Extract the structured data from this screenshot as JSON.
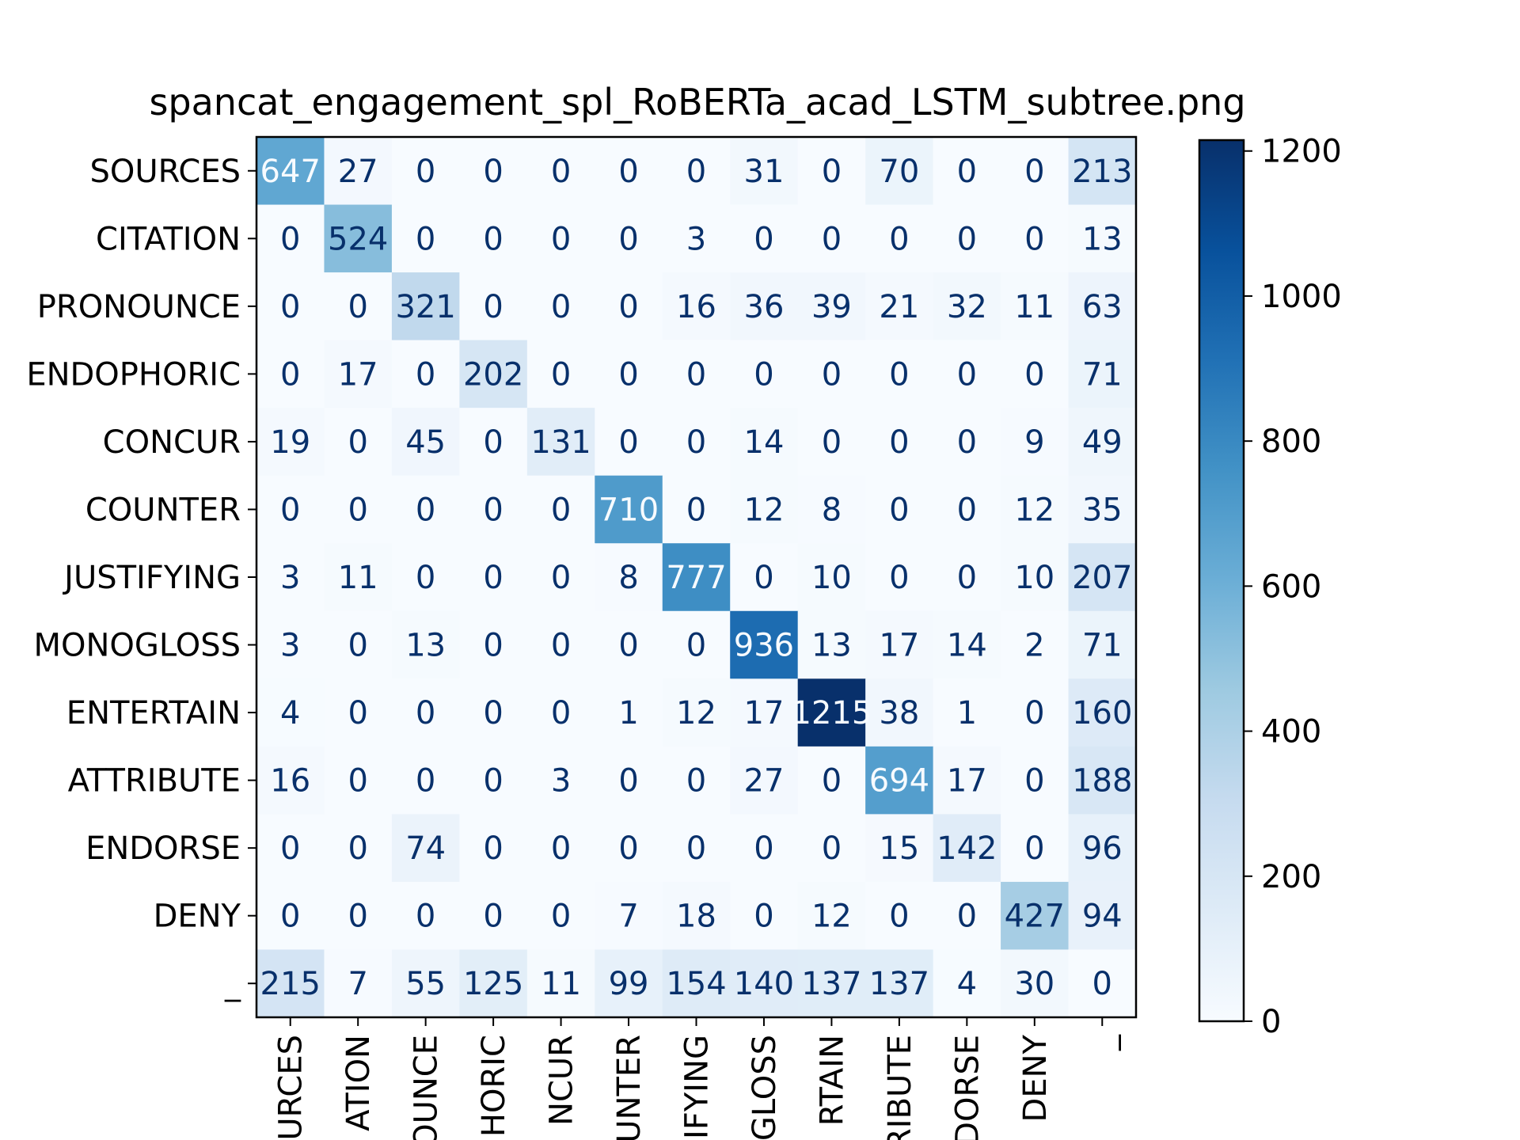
{
  "chart_data": {
    "type": "heatmap",
    "title": "spancat_engagement_spl_RoBERTa_acad_LSTM_subtree.png",
    "xlabel": "",
    "ylabel": "",
    "y_labels": [
      "SOURCES",
      "CITATION",
      "PRONOUNCE",
      "ENDOPHORIC",
      "CONCUR",
      "COUNTER",
      "JUSTIFYING",
      "MONOGLOSS",
      "ENTERTAIN",
      "ATTRIBUTE",
      "ENDORSE",
      "DENY",
      "_"
    ],
    "x_labels": [
      "URCES",
      "ATION",
      "OUNCE",
      "HORIC",
      "NCUR",
      "UNTER",
      "IFYING",
      "GLOSS",
      "RTAIN",
      "RIBUTE",
      "DORSE",
      "DENY",
      "_"
    ],
    "matrix": [
      [
        647,
        27,
        0,
        0,
        0,
        0,
        0,
        31,
        0,
        70,
        0,
        0,
        213
      ],
      [
        0,
        524,
        0,
        0,
        0,
        0,
        3,
        0,
        0,
        0,
        0,
        0,
        13
      ],
      [
        0,
        0,
        321,
        0,
        0,
        0,
        16,
        36,
        39,
        21,
        32,
        11,
        63
      ],
      [
        0,
        17,
        0,
        202,
        0,
        0,
        0,
        0,
        0,
        0,
        0,
        0,
        71
      ],
      [
        19,
        0,
        45,
        0,
        131,
        0,
        0,
        14,
        0,
        0,
        0,
        9,
        49
      ],
      [
        0,
        0,
        0,
        0,
        0,
        710,
        0,
        12,
        8,
        0,
        0,
        12,
        35
      ],
      [
        3,
        11,
        0,
        0,
        0,
        8,
        777,
        0,
        10,
        0,
        0,
        10,
        207
      ],
      [
        3,
        0,
        13,
        0,
        0,
        0,
        0,
        936,
        13,
        17,
        14,
        2,
        71
      ],
      [
        4,
        0,
        0,
        0,
        0,
        1,
        12,
        17,
        1215,
        38,
        1,
        0,
        160
      ],
      [
        16,
        0,
        0,
        0,
        3,
        0,
        0,
        27,
        0,
        694,
        17,
        0,
        188
      ],
      [
        0,
        0,
        74,
        0,
        0,
        0,
        0,
        0,
        0,
        15,
        142,
        0,
        96
      ],
      [
        0,
        0,
        0,
        0,
        0,
        7,
        18,
        0,
        12,
        0,
        0,
        427,
        94
      ],
      [
        215,
        7,
        55,
        125,
        11,
        99,
        154,
        140,
        137,
        137,
        4,
        30,
        0
      ]
    ],
    "colorbar": {
      "cmap": "Blues",
      "range": [
        0,
        1215
      ],
      "ticks": [
        0,
        200,
        400,
        600,
        800,
        1000,
        1200
      ]
    },
    "grid": false,
    "legend": "none"
  }
}
